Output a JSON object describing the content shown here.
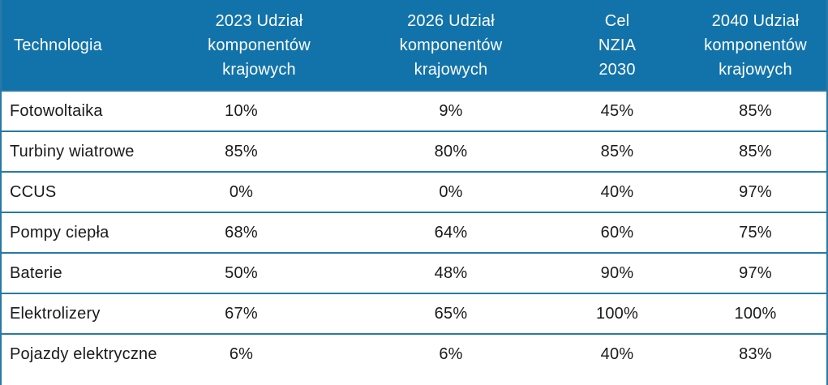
{
  "colors": {
    "header-bg": "#1273AA",
    "header-text": "#FDFEFE",
    "border": "#2979A6",
    "body-text": "#1A1A1A",
    "row-bg": "#FFFFFF"
  },
  "table": {
    "header": [
      {
        "lines": [
          "Technologia",
          "",
          ""
        ]
      },
      {
        "lines": [
          "2023 Udział",
          "komponentów",
          "krajowych"
        ]
      },
      {
        "lines": [
          "2026 Udział",
          "komponentów",
          "krajowych"
        ]
      },
      {
        "lines": [
          "Cel",
          "NZIA",
          "2030"
        ]
      },
      {
        "lines": [
          "2040 Udział",
          "komponentów",
          "krajowych"
        ]
      }
    ],
    "rows": [
      {
        "label": "Fotowoltaika",
        "values": [
          "10%",
          "9%",
          "45%",
          "85%"
        ]
      },
      {
        "label": "Turbiny wiatrowe",
        "values": [
          "85%",
          "80%",
          "85%",
          "85%"
        ]
      },
      {
        "label": "CCUS",
        "values": [
          "0%",
          "0%",
          "40%",
          "97%"
        ]
      },
      {
        "label": "Pompy ciepła",
        "values": [
          "68%",
          "64%",
          "60%",
          "75%"
        ]
      },
      {
        "label": "Baterie",
        "values": [
          "50%",
          "48%",
          "90%",
          "97%"
        ]
      },
      {
        "label": "Elektrolizery",
        "values": [
          "67%",
          "65%",
          "100%",
          "100%"
        ]
      },
      {
        "label": "Pojazdy elektryczne",
        "values": [
          "6%",
          "6%",
          "40%",
          "83%"
        ]
      }
    ]
  },
  "chart_data": {
    "type": "table",
    "title": "",
    "columns": [
      "Technologia",
      "2023 Udział komponentów krajowych",
      "2026 Udział komponentów krajowych",
      "Cel NZIA 2030",
      "2040 Udział komponentów krajowych"
    ],
    "rows": [
      [
        "Fotowoltaika",
        "10%",
        "9%",
        "45%",
        "85%"
      ],
      [
        "Turbiny wiatrowe",
        "85%",
        "80%",
        "85%",
        "85%"
      ],
      [
        "CCUS",
        "0%",
        "0%",
        "40%",
        "97%"
      ],
      [
        "Pompy ciepła",
        "68%",
        "64%",
        "60%",
        "75%"
      ],
      [
        "Baterie",
        "50%",
        "48%",
        "90%",
        "97%"
      ],
      [
        "Elektrolizery",
        "67%",
        "65%",
        "100%",
        "100%"
      ],
      [
        "Pojazdy elektryczne",
        "6%",
        "6%",
        "40%",
        "83%"
      ]
    ]
  }
}
